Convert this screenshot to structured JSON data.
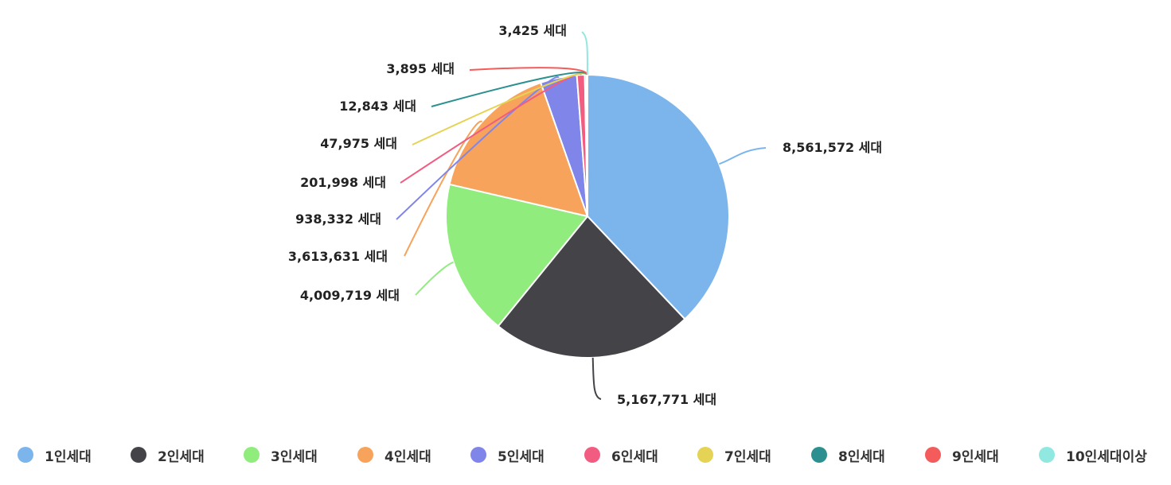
{
  "chart_data": {
    "type": "pie",
    "title": "",
    "categories": [
      "1인세대",
      "2인세대",
      "3인세대",
      "4인세대",
      "5인세대",
      "6인세대",
      "7인세대",
      "8인세대",
      "9인세대",
      "10인세대이상"
    ],
    "values": [
      8561572,
      5167771,
      4009719,
      3613631,
      938332,
      201998,
      47975,
      12843,
      3895,
      3425
    ],
    "data_labels": [
      "8,561,572 세대",
      "5,167,771 세대",
      "4,009,719 세대",
      "3,613,631 세대",
      "938,332 세대",
      "201,998 세대",
      "47,975 세대",
      "12,843 세대",
      "3,895 세대",
      "3,425 세대"
    ],
    "colors": [
      "#7cb5ec",
      "#434348",
      "#90ed7d",
      "#f7a35c",
      "#8085e9",
      "#f15c80",
      "#e4d354",
      "#2b908f",
      "#f45b5b",
      "#91e8e1"
    ],
    "start_angle_deg": 0,
    "direction": "clockwise",
    "legend_position": "bottom"
  },
  "legend": {
    "items": [
      "1인세대",
      "2인세대",
      "3인세대",
      "4인세대",
      "5인세대",
      "6인세대",
      "7인세대",
      "8인세대",
      "9인세대",
      "10인세대이상"
    ]
  }
}
